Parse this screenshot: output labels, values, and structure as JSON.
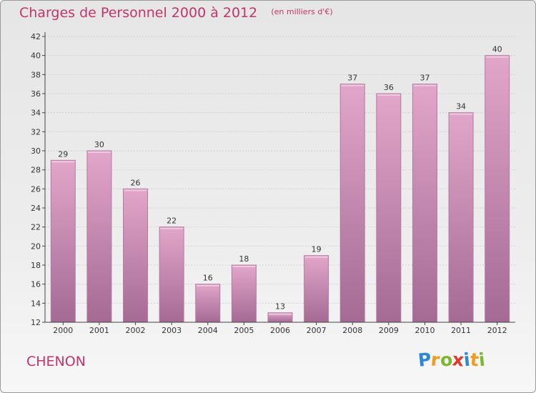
{
  "header": {
    "title": "Charges de Personnel 2000 à 2012",
    "subtitle": "(en milliers d'€)"
  },
  "footer": {
    "place": "CHENON",
    "logo": {
      "letters": [
        "P",
        "r",
        "o",
        "x",
        "i",
        "t",
        "i"
      ],
      "colors": [
        "#2f86d6",
        "#f29b1d",
        "#7ab92f",
        "#e03a2f",
        "#2f86d6",
        "#f29b1d",
        "#7ab92f"
      ]
    }
  },
  "colors": {
    "bar_top": "#e2a6ca",
    "bar_bottom": "#a56a94",
    "bar_edge": "#b47aa0",
    "text_accent": "#c0356a"
  },
  "chart_data": {
    "type": "bar",
    "categories": [
      "2000",
      "2001",
      "2002",
      "2003",
      "2004",
      "2005",
      "2006",
      "2007",
      "2008",
      "2009",
      "2010",
      "2011",
      "2012"
    ],
    "values": [
      29,
      30,
      26,
      22,
      16,
      18,
      13,
      19,
      37,
      36,
      37,
      34,
      40
    ],
    "title": "Charges de Personnel 2000 à 2012",
    "ylim": [
      12,
      42
    ],
    "yticks": [
      12,
      14,
      16,
      18,
      20,
      22,
      24,
      26,
      28,
      30,
      32,
      34,
      36,
      38,
      40,
      42
    ],
    "grid": true
  }
}
